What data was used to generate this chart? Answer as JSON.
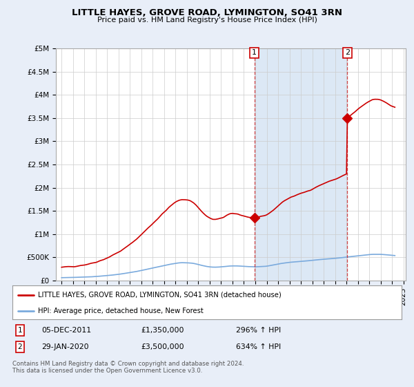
{
  "title": "LITTLE HAYES, GROVE ROAD, LYMINGTON, SO41 3RN",
  "subtitle": "Price paid vs. HM Land Registry's House Price Index (HPI)",
  "legend_line1": "LITTLE HAYES, GROVE ROAD, LYMINGTON, SO41 3RN (detached house)",
  "legend_line2": "HPI: Average price, detached house, New Forest",
  "footnote": "Contains HM Land Registry data © Crown copyright and database right 2024.\nThis data is licensed under the Open Government Licence v3.0.",
  "annotation1": {
    "label": "1",
    "date_str": "05-DEC-2011",
    "price_str": "£1,350,000",
    "pct_str": "296% ↑ HPI",
    "year": 2011.917,
    "value": 1350000
  },
  "annotation2": {
    "label": "2",
    "date_str": "29-JAN-2020",
    "price_str": "£3,500,000",
    "pct_str": "634% ↑ HPI",
    "year": 2020.083,
    "value": 3500000
  },
  "hpi_color": "#7aaadd",
  "price_color": "#cc0000",
  "background_color": "#e8eef8",
  "plot_bg_color": "#ffffff",
  "shade_color": "#dce8f5",
  "ylim": [
    0,
    5000000
  ],
  "yticks": [
    0,
    500000,
    1000000,
    1500000,
    2000000,
    2500000,
    3000000,
    3500000,
    4000000,
    4500000,
    5000000
  ],
  "ytick_labels": [
    "£0",
    "£500K",
    "£1M",
    "£1.5M",
    "£2M",
    "£2.5M",
    "£3M",
    "£3.5M",
    "£4M",
    "£4.5M",
    "£5M"
  ],
  "xlim_start": 1994.5,
  "xlim_end": 2025.2,
  "xtick_years": [
    1995,
    1996,
    1997,
    1998,
    1999,
    2000,
    2001,
    2002,
    2003,
    2004,
    2005,
    2006,
    2007,
    2008,
    2009,
    2010,
    2011,
    2012,
    2013,
    2014,
    2015,
    2016,
    2017,
    2018,
    2019,
    2020,
    2021,
    2022,
    2023,
    2024,
    2025
  ],
  "hpi_base_values": [
    62000,
    63500,
    64800,
    66200,
    67700,
    69300,
    70900,
    72600,
    74800,
    77200,
    80000,
    83200,
    87000,
    91200,
    95800,
    100800,
    106100,
    112000,
    118500,
    125200,
    132500,
    140000,
    148000,
    157000,
    167000,
    177800,
    189000,
    200000,
    212000,
    225000,
    238000,
    251000,
    264000,
    277000,
    290000,
    303000,
    316000,
    329000,
    342000,
    354000,
    365000,
    374000,
    380000,
    384000,
    385000,
    383000,
    378000,
    370000,
    358000,
    343000,
    328000,
    314000,
    303000,
    295000,
    290000,
    289000,
    291000,
    296000,
    302000,
    309000,
    314000,
    317000,
    317000,
    315000,
    311000,
    307000,
    303000,
    300000,
    298000,
    297000,
    298000,
    300000,
    304000,
    310000,
    318000,
    328000,
    339000,
    351000,
    363000,
    373000,
    382000,
    390000,
    396000,
    401000,
    406000,
    410000,
    415000,
    420000,
    426000,
    432000,
    438000,
    444000,
    450000,
    456000,
    462000,
    467000,
    472000,
    477000,
    482000,
    488000,
    494000,
    500000,
    507000,
    514000,
    521000,
    528000,
    535000,
    542000,
    549000,
    555000,
    560000,
    564000,
    566000,
    566000,
    564000,
    560000,
    555000,
    550000,
    545000,
    540000
  ],
  "price_sale1_year": 2011.917,
  "price_sale1_value": 1350000,
  "price_sale2_year": 2020.083,
  "price_sale2_value": 3500000
}
